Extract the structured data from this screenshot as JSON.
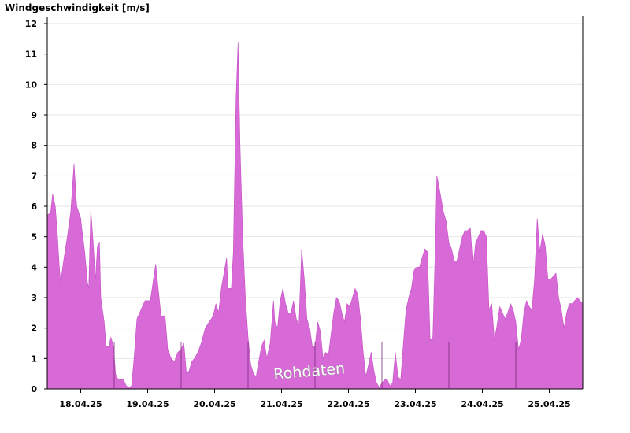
{
  "chart_data": {
    "type": "area",
    "ylabel": "Windgeschwindigkeit [m/s]",
    "ylim": [
      0,
      12
    ],
    "yticks": [
      "0",
      "1",
      "2",
      "3",
      "4",
      "5",
      "6",
      "7",
      "8",
      "9",
      "10",
      "11",
      "12"
    ],
    "grid": true,
    "xlim_days": [
      0,
      8
    ],
    "xtick_labels": [
      "18.04.25",
      "19.04.25",
      "20.04.25",
      "21.04.25",
      "22.04.25",
      "23.04.25",
      "24.04.25",
      "25.04.25"
    ],
    "color": "#d86ad8",
    "watermark": "Rohdaten",
    "series": [
      {
        "values": [
          [
            0.0,
            5.7
          ],
          [
            0.05,
            5.8
          ],
          [
            0.08,
            6.4
          ],
          [
            0.12,
            6.0
          ],
          [
            0.15,
            5.1
          ],
          [
            0.18,
            4.0
          ],
          [
            0.2,
            3.5
          ],
          [
            0.25,
            4.3
          ],
          [
            0.3,
            5.0
          ],
          [
            0.35,
            5.8
          ],
          [
            0.4,
            7.4
          ],
          [
            0.44,
            6.0
          ],
          [
            0.5,
            5.6
          ],
          [
            0.52,
            5.2
          ],
          [
            0.56,
            4.5
          ],
          [
            0.6,
            3.5
          ],
          [
            0.62,
            3.3
          ],
          [
            0.65,
            5.9
          ],
          [
            0.68,
            5.0
          ],
          [
            0.72,
            3.6
          ],
          [
            0.75,
            4.7
          ],
          [
            0.78,
            4.8
          ],
          [
            0.8,
            3.0
          ],
          [
            0.85,
            2.2
          ],
          [
            0.88,
            1.4
          ],
          [
            0.92,
            1.4
          ],
          [
            0.95,
            1.7
          ],
          [
            0.99,
            1.4
          ],
          [
            1.02,
            0.5
          ],
          [
            1.06,
            0.3
          ],
          [
            1.1,
            0.3
          ],
          [
            1.14,
            0.3
          ],
          [
            1.18,
            0.1
          ],
          [
            1.22,
            0.05
          ],
          [
            1.26,
            0.1
          ],
          [
            1.3,
            1.1
          ],
          [
            1.34,
            2.3
          ],
          [
            1.4,
            2.6
          ],
          [
            1.46,
            2.9
          ],
          [
            1.54,
            2.9
          ],
          [
            1.62,
            4.1
          ],
          [
            1.7,
            2.4
          ],
          [
            1.76,
            2.4
          ],
          [
            1.8,
            1.3
          ],
          [
            1.85,
            1.0
          ],
          [
            1.9,
            0.9
          ],
          [
            1.95,
            1.2
          ],
          [
            2.0,
            1.3
          ],
          [
            2.04,
            1.5
          ],
          [
            2.08,
            0.5
          ],
          [
            2.12,
            0.6
          ],
          [
            2.16,
            0.9
          ],
          [
            2.2,
            1.0
          ],
          [
            2.25,
            1.2
          ],
          [
            2.3,
            1.5
          ],
          [
            2.36,
            2.0
          ],
          [
            2.42,
            2.2
          ],
          [
            2.48,
            2.4
          ],
          [
            2.52,
            2.8
          ],
          [
            2.56,
            2.5
          ],
          [
            2.6,
            3.3
          ],
          [
            2.64,
            3.8
          ],
          [
            2.68,
            4.3
          ],
          [
            2.7,
            3.3
          ],
          [
            2.75,
            3.3
          ],
          [
            2.78,
            4.5
          ],
          [
            2.82,
            9.5
          ],
          [
            2.85,
            11.4
          ],
          [
            2.88,
            8.0
          ],
          [
            2.92,
            5.0
          ],
          [
            2.96,
            3.0
          ],
          [
            3.0,
            1.7
          ],
          [
            3.04,
            0.8
          ],
          [
            3.08,
            0.5
          ],
          [
            3.12,
            0.4
          ],
          [
            3.16,
            0.9
          ],
          [
            3.2,
            1.4
          ],
          [
            3.24,
            1.6
          ],
          [
            3.28,
            1.0
          ],
          [
            3.33,
            1.5
          ],
          [
            3.38,
            2.9
          ],
          [
            3.4,
            2.2
          ],
          [
            3.44,
            2.0
          ],
          [
            3.48,
            2.9
          ],
          [
            3.52,
            3.3
          ],
          [
            3.56,
            2.8
          ],
          [
            3.6,
            2.5
          ],
          [
            3.64,
            2.5
          ],
          [
            3.68,
            2.9
          ],
          [
            3.72,
            2.3
          ],
          [
            3.76,
            2.1
          ],
          [
            3.8,
            4.6
          ],
          [
            3.84,
            3.6
          ],
          [
            3.88,
            2.3
          ],
          [
            3.92,
            2.0
          ],
          [
            3.96,
            1.4
          ],
          [
            4.0,
            1.4
          ],
          [
            4.04,
            2.2
          ],
          [
            4.08,
            1.9
          ],
          [
            4.12,
            1.0
          ],
          [
            4.16,
            1.2
          ],
          [
            4.2,
            1.1
          ],
          [
            4.24,
            1.8
          ],
          [
            4.28,
            2.5
          ],
          [
            4.32,
            3.0
          ],
          [
            4.36,
            2.9
          ],
          [
            4.4,
            2.5
          ],
          [
            4.44,
            2.2
          ],
          [
            4.48,
            2.8
          ],
          [
            4.52,
            2.7
          ],
          [
            4.56,
            3.0
          ],
          [
            4.6,
            3.3
          ],
          [
            4.64,
            3.1
          ],
          [
            4.68,
            2.3
          ],
          [
            4.72,
            1.2
          ],
          [
            4.76,
            0.4
          ],
          [
            4.8,
            0.8
          ],
          [
            4.84,
            1.2
          ],
          [
            4.88,
            0.6
          ],
          [
            4.92,
            0.2
          ],
          [
            4.96,
            0.05
          ],
          [
            5.0,
            0.2
          ],
          [
            5.04,
            0.3
          ],
          [
            5.08,
            0.3
          ],
          [
            5.12,
            0.1
          ],
          [
            5.16,
            0.2
          ],
          [
            5.2,
            1.2
          ],
          [
            5.24,
            0.4
          ],
          [
            5.28,
            0.3
          ],
          [
            5.32,
            1.5
          ],
          [
            5.36,
            2.6
          ],
          [
            5.4,
            3.0
          ],
          [
            5.44,
            3.3
          ],
          [
            5.48,
            3.9
          ],
          [
            5.52,
            4.0
          ],
          [
            5.56,
            4.0
          ],
          [
            5.6,
            4.3
          ],
          [
            5.64,
            4.6
          ],
          [
            5.68,
            4.5
          ],
          [
            5.72,
            1.6
          ],
          [
            5.76,
            1.7
          ],
          [
            5.8,
            4.9
          ],
          [
            5.82,
            7.0
          ],
          [
            5.84,
            6.8
          ],
          [
            5.88,
            6.3
          ],
          [
            5.92,
            5.8
          ],
          [
            5.96,
            5.5
          ],
          [
            6.0,
            4.8
          ],
          [
            6.04,
            4.6
          ],
          [
            6.08,
            4.2
          ],
          [
            6.12,
            4.2
          ],
          [
            6.16,
            4.6
          ],
          [
            6.2,
            5.0
          ],
          [
            6.24,
            5.2
          ],
          [
            6.28,
            5.2
          ],
          [
            6.32,
            5.3
          ],
          [
            6.36,
            4.0
          ],
          [
            6.4,
            4.8
          ],
          [
            6.44,
            5.0
          ],
          [
            6.48,
            5.2
          ],
          [
            6.52,
            5.2
          ],
          [
            6.56,
            5.0
          ],
          [
            6.6,
            2.6
          ],
          [
            6.64,
            2.8
          ],
          [
            6.68,
            1.6
          ],
          [
            6.72,
            2.1
          ],
          [
            6.76,
            2.7
          ],
          [
            6.8,
            2.5
          ],
          [
            6.84,
            2.3
          ],
          [
            6.88,
            2.5
          ],
          [
            6.92,
            2.8
          ],
          [
            6.96,
            2.6
          ],
          [
            7.0,
            2.2
          ],
          [
            7.04,
            1.3
          ],
          [
            7.08,
            1.6
          ],
          [
            7.12,
            2.5
          ],
          [
            7.16,
            2.9
          ],
          [
            7.2,
            2.7
          ],
          [
            7.24,
            2.6
          ],
          [
            7.28,
            3.6
          ],
          [
            7.32,
            5.6
          ],
          [
            7.36,
            4.5
          ],
          [
            7.4,
            5.1
          ],
          [
            7.44,
            4.7
          ],
          [
            7.48,
            3.6
          ],
          [
            7.52,
            3.6
          ],
          [
            7.56,
            3.7
          ],
          [
            7.6,
            3.8
          ],
          [
            7.64,
            3.0
          ],
          [
            7.68,
            2.6
          ],
          [
            7.72,
            2.0
          ],
          [
            7.76,
            2.5
          ],
          [
            7.8,
            2.8
          ],
          [
            7.84,
            2.8
          ],
          [
            7.88,
            2.9
          ],
          [
            7.92,
            3.0
          ],
          [
            7.96,
            2.9
          ],
          [
            8.0,
            2.8
          ]
        ]
      }
    ]
  }
}
